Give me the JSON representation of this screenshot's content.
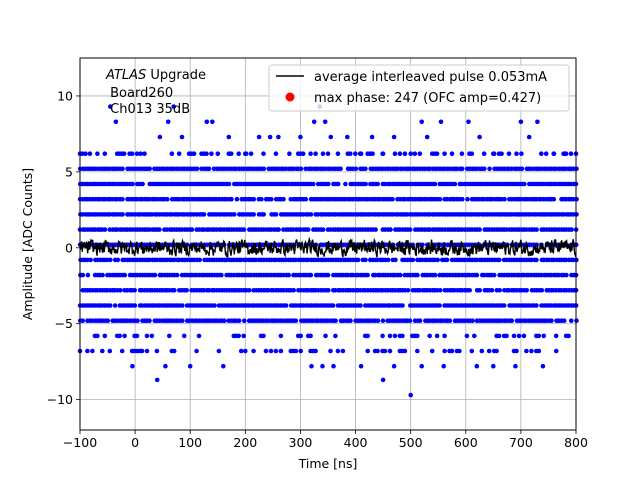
{
  "chart_data": {
    "type": "scatter",
    "xlabel": "Time [ns]",
    "ylabel": "Amplitude [ADC Counts]",
    "xlim": [
      -100,
      800
    ],
    "ylim": [
      -12,
      12.5
    ],
    "x_ticks": [
      -100,
      0,
      100,
      200,
      300,
      400,
      500,
      600,
      700,
      800
    ],
    "x_tick_labels": [
      "−100",
      "0",
      "100",
      "200",
      "300",
      "400",
      "500",
      "600",
      "700",
      "800"
    ],
    "y_ticks": [
      -10,
      -5,
      0,
      5,
      10
    ],
    "y_tick_labels": [
      "−10",
      "−5",
      "0",
      "5",
      "10"
    ],
    "grid": true,
    "legend_position": "top-right",
    "annotation": {
      "line1_italic": "ATLAS",
      "line1_rest": " Upgrade",
      "line2": " Board260",
      "line3": " Ch013 35dB"
    },
    "series": [
      {
        "name": "average interleaved pulse 0.053mA",
        "kind": "line",
        "color": "#000000",
        "baseline": 0,
        "noise_range": [
          -0.7,
          0.6
        ]
      },
      {
        "name": "max phase: 247 (OFC amp=0.427)",
        "kind": "scatter",
        "color": "#0000ff",
        "dense_levels": [
          5.2,
          4.2,
          3.2,
          2.2,
          1.2,
          0.2,
          -0.8,
          -1.8,
          -2.8,
          -3.8,
          -4.8
        ],
        "sparse_levels": [
          6.2,
          -5.8,
          -6.8
        ],
        "outliers": [
          {
            "x": -90,
            "y": 6.2
          },
          {
            "x": -35,
            "y": 8.3
          },
          {
            "x": -20,
            "y": 6.2
          },
          {
            "x": -45,
            "y": 9.3
          },
          {
            "x": 10,
            "y": 6.2
          },
          {
            "x": 45,
            "y": 7.3
          },
          {
            "x": 60,
            "y": 8.3
          },
          {
            "x": 70,
            "y": 9.3
          },
          {
            "x": 85,
            "y": 7.3
          },
          {
            "x": 130,
            "y": 8.3
          },
          {
            "x": 140,
            "y": 8.3
          },
          {
            "x": 150,
            "y": 6.2
          },
          {
            "x": 170,
            "y": 7.3
          },
          {
            "x": 200,
            "y": 6.2
          },
          {
            "x": 225,
            "y": 7.3
          },
          {
            "x": 245,
            "y": 7.3
          },
          {
            "x": 260,
            "y": 7.3
          },
          {
            "x": 280,
            "y": 6.2
          },
          {
            "x": 300,
            "y": 7.3
          },
          {
            "x": 325,
            "y": 8.3
          },
          {
            "x": 345,
            "y": 8.3
          },
          {
            "x": 355,
            "y": 7.3
          },
          {
            "x": 385,
            "y": 7.3
          },
          {
            "x": 410,
            "y": 6.2
          },
          {
            "x": 430,
            "y": 7.3
          },
          {
            "x": 450,
            "y": 6.2
          },
          {
            "x": 470,
            "y": 7.3
          },
          {
            "x": 500,
            "y": 6.2
          },
          {
            "x": 520,
            "y": 8.3
          },
          {
            "x": 530,
            "y": 7.3
          },
          {
            "x": 555,
            "y": 8.3
          },
          {
            "x": 575,
            "y": 6.2
          },
          {
            "x": 605,
            "y": 8.3
          },
          {
            "x": 625,
            "y": 7.3
          },
          {
            "x": 650,
            "y": 6.2
          },
          {
            "x": 700,
            "y": 8.3
          },
          {
            "x": 715,
            "y": 7.3
          },
          {
            "x": 730,
            "y": 8.3
          },
          {
            "x": 760,
            "y": 6.2
          },
          {
            "x": 780,
            "y": 6.2
          },
          {
            "x": 790,
            "y": 5.2
          },
          {
            "x": 335,
            "y": 9.3
          },
          {
            "x": -5,
            "y": -7.8
          },
          {
            "x": 40,
            "y": -8.7
          },
          {
            "x": 55,
            "y": -7.8
          },
          {
            "x": 100,
            "y": -7.8
          },
          {
            "x": 160,
            "y": -7.8
          },
          {
            "x": 200,
            "y": -6.8
          },
          {
            "x": 320,
            "y": -7.8
          },
          {
            "x": 340,
            "y": -7.8
          },
          {
            "x": 360,
            "y": -7.8
          },
          {
            "x": 410,
            "y": -7.8
          },
          {
            "x": 450,
            "y": -8.7
          },
          {
            "x": 470,
            "y": -7.8
          },
          {
            "x": 500,
            "y": -9.7
          },
          {
            "x": 520,
            "y": -7.8
          },
          {
            "x": 560,
            "y": -7.8
          },
          {
            "x": 620,
            "y": -7.8
          },
          {
            "x": 650,
            "y": -7.8
          },
          {
            "x": 690,
            "y": -7.8
          },
          {
            "x": 740,
            "y": -7.8
          }
        ]
      }
    ]
  }
}
